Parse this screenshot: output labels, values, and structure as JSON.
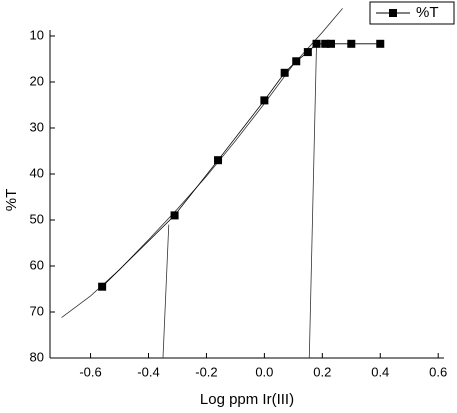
{
  "chart_data": {
    "type": "scatter",
    "x_label": "Log ppm Ir(III)",
    "y_label": "%T",
    "legend_position": "upper right",
    "series": [
      {
        "name": "%T",
        "color": "#000000",
        "x": [
          -0.56,
          -0.31,
          -0.16,
          0.0,
          0.07,
          0.11,
          0.15,
          0.18,
          0.21,
          0.23,
          0.3,
          0.4
        ],
        "values": [
          64.5,
          49,
          37,
          24,
          18,
          15.5,
          13.5,
          11.7,
          11.7,
          11.7,
          11.7,
          11.7
        ]
      }
    ],
    "lines": [
      {
        "x": [
          -0.7,
          -0.6,
          -0.5,
          -0.4,
          -0.3,
          -0.2,
          -0.1,
          0.0,
          0.1,
          0.2,
          0.27
        ],
        "y": [
          71.2,
          66.5,
          60.8,
          54.3,
          47.6,
          40.5,
          32.8,
          24.7,
          16.2,
          9.2,
          4.0
        ]
      },
      {
        "x": [
          -0.35,
          -0.33
        ],
        "y": [
          80,
          51
        ]
      },
      {
        "x": [
          0.155,
          0.18
        ],
        "y": [
          80,
          11.7
        ]
      }
    ],
    "xlim": [
      -0.74,
      0.62
    ],
    "ylim": [
      80,
      8.7
    ],
    "xticks": [
      -0.6,
      -0.4,
      -0.2,
      {
        "value": 0,
        "label": "0.0"
      },
      0.2,
      0.4,
      0.6
    ],
    "yticks": [
      10,
      20,
      30,
      40,
      50,
      60,
      70,
      80
    ]
  }
}
